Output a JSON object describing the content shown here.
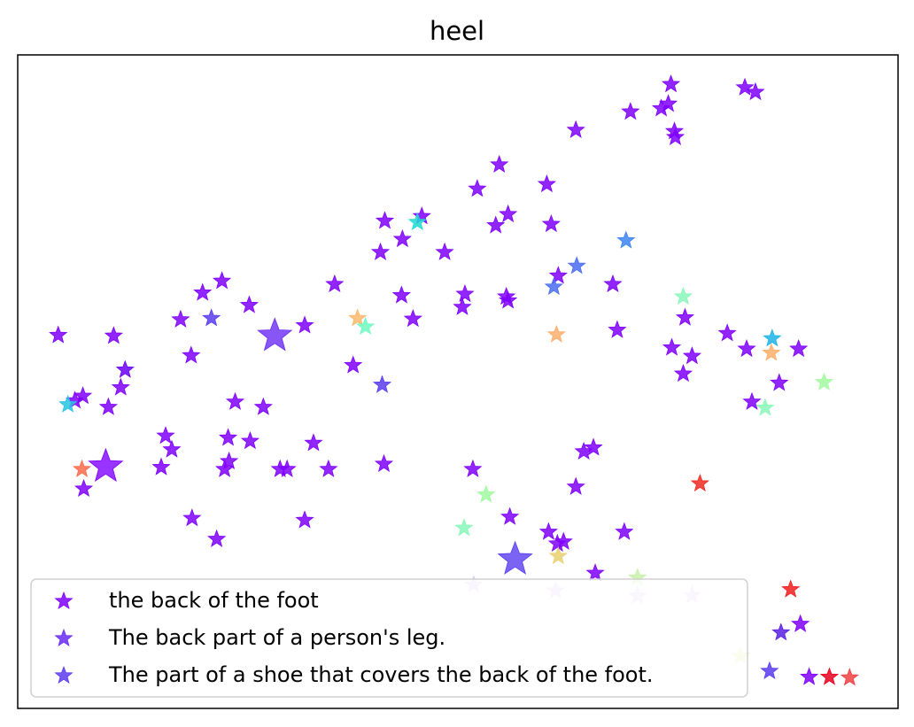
{
  "chart_data": {
    "type": "scatter",
    "title": "heel",
    "xlabel": "",
    "ylabel": "",
    "xlim": [
      0,
      100
    ],
    "ylim": [
      0,
      100
    ],
    "grid": false,
    "axes_ticks": false,
    "legend_placement": "lower-left",
    "marker": "star",
    "legend": [
      {
        "label": "the back of the foot",
        "color": "#7f00ff"
      },
      {
        "label": "The back part of a person's leg.",
        "color": "#6a2cf5"
      },
      {
        "label": "The part of a shoe that covers the back of the foot.",
        "color": "#5a3cf0"
      }
    ],
    "highlights": [
      {
        "x": 29.2,
        "y": 57.0,
        "color": "#6a2cf5"
      },
      {
        "x": 10.0,
        "y": 37.0,
        "color": "#7f00ff"
      },
      {
        "x": 56.5,
        "y": 22.8,
        "color": "#5a3cf0"
      }
    ],
    "points": [
      {
        "x": 74.2,
        "y": 95.5,
        "color": "#7f00ff"
      },
      {
        "x": 82.6,
        "y": 95.0,
        "color": "#7f00ff"
      },
      {
        "x": 83.8,
        "y": 94.3,
        "color": "#7f00ff"
      },
      {
        "x": 69.6,
        "y": 91.3,
        "color": "#7f00ff"
      },
      {
        "x": 73.1,
        "y": 91.8,
        "color": "#7f00ff"
      },
      {
        "x": 73.9,
        "y": 92.5,
        "color": "#7f00ff"
      },
      {
        "x": 63.4,
        "y": 88.5,
        "color": "#7f00ff"
      },
      {
        "x": 74.6,
        "y": 88.3,
        "color": "#7f00ff"
      },
      {
        "x": 74.7,
        "y": 87.4,
        "color": "#7f00ff"
      },
      {
        "x": 54.7,
        "y": 83.2,
        "color": "#7f00ff"
      },
      {
        "x": 52.2,
        "y": 79.5,
        "color": "#7f00ff"
      },
      {
        "x": 60.1,
        "y": 80.2,
        "color": "#7f00ff"
      },
      {
        "x": 55.7,
        "y": 75.6,
        "color": "#7f00ff"
      },
      {
        "x": 54.3,
        "y": 73.9,
        "color": "#7f00ff"
      },
      {
        "x": 60.6,
        "y": 74.1,
        "color": "#7f00ff"
      },
      {
        "x": 41.7,
        "y": 74.6,
        "color": "#7f00ff"
      },
      {
        "x": 45.9,
        "y": 75.3,
        "color": "#7f00ff"
      },
      {
        "x": 45.4,
        "y": 74.4,
        "color": "#1fdad2"
      },
      {
        "x": 43.7,
        "y": 71.8,
        "color": "#7f00ff"
      },
      {
        "x": 41.2,
        "y": 69.8,
        "color": "#7f00ff"
      },
      {
        "x": 48.5,
        "y": 69.8,
        "color": "#7f00ff"
      },
      {
        "x": 69.1,
        "y": 71.6,
        "color": "#3d85f0"
      },
      {
        "x": 63.5,
        "y": 67.7,
        "color": "#4b6cf0"
      },
      {
        "x": 61.4,
        "y": 66.2,
        "color": "#7f00ff"
      },
      {
        "x": 60.9,
        "y": 64.5,
        "color": "#4b6cf0"
      },
      {
        "x": 67.6,
        "y": 64.9,
        "color": "#7f00ff"
      },
      {
        "x": 75.6,
        "y": 63.0,
        "color": "#88f8b8"
      },
      {
        "x": 75.8,
        "y": 59.8,
        "color": "#7f00ff"
      },
      {
        "x": 23.2,
        "y": 65.4,
        "color": "#7f00ff"
      },
      {
        "x": 21.0,
        "y": 63.6,
        "color": "#7f00ff"
      },
      {
        "x": 26.3,
        "y": 61.7,
        "color": "#7f00ff"
      },
      {
        "x": 22.0,
        "y": 59.7,
        "color": "#5a3cf0"
      },
      {
        "x": 18.5,
        "y": 59.5,
        "color": "#7f00ff"
      },
      {
        "x": 36.0,
        "y": 64.9,
        "color": "#7f00ff"
      },
      {
        "x": 32.6,
        "y": 58.6,
        "color": "#7f00ff"
      },
      {
        "x": 43.6,
        "y": 63.2,
        "color": "#7f00ff"
      },
      {
        "x": 50.8,
        "y": 63.4,
        "color": "#7f00ff"
      },
      {
        "x": 55.5,
        "y": 63.0,
        "color": "#7f00ff"
      },
      {
        "x": 55.7,
        "y": 62.4,
        "color": "#7f00ff"
      },
      {
        "x": 50.5,
        "y": 61.4,
        "color": "#7f00ff"
      },
      {
        "x": 44.9,
        "y": 59.6,
        "color": "#7f00ff"
      },
      {
        "x": 38.6,
        "y": 59.7,
        "color": "#fdb86d"
      },
      {
        "x": 39.5,
        "y": 58.4,
        "color": "#6ef9c2"
      },
      {
        "x": 61.2,
        "y": 57.2,
        "color": "#fdae6b"
      },
      {
        "x": 68.1,
        "y": 57.9,
        "color": "#7f00ff"
      },
      {
        "x": 4.6,
        "y": 57.1,
        "color": "#7f00ff"
      },
      {
        "x": 10.9,
        "y": 57.0,
        "color": "#7f00ff"
      },
      {
        "x": 19.7,
        "y": 54.0,
        "color": "#7f00ff"
      },
      {
        "x": 38.1,
        "y": 52.5,
        "color": "#7f00ff"
      },
      {
        "x": 74.3,
        "y": 55.2,
        "color": "#7f00ff"
      },
      {
        "x": 76.6,
        "y": 53.9,
        "color": "#7f00ff"
      },
      {
        "x": 75.6,
        "y": 51.2,
        "color": "#7f00ff"
      },
      {
        "x": 80.6,
        "y": 57.4,
        "color": "#7f00ff"
      },
      {
        "x": 82.8,
        "y": 55.0,
        "color": "#7f00ff"
      },
      {
        "x": 85.7,
        "y": 56.6,
        "color": "#1cb4e5"
      },
      {
        "x": 85.6,
        "y": 54.4,
        "color": "#fdae6b"
      },
      {
        "x": 88.7,
        "y": 55.0,
        "color": "#7f00ff"
      },
      {
        "x": 86.5,
        "y": 49.8,
        "color": "#7f00ff"
      },
      {
        "x": 91.6,
        "y": 49.9,
        "color": "#a0faa0"
      },
      {
        "x": 83.4,
        "y": 46.9,
        "color": "#7f00ff"
      },
      {
        "x": 84.9,
        "y": 46.0,
        "color": "#88f8b8"
      },
      {
        "x": 12.2,
        "y": 51.8,
        "color": "#6a00f5"
      },
      {
        "x": 11.7,
        "y": 49.1,
        "color": "#7f00ff"
      },
      {
        "x": 7.4,
        "y": 47.8,
        "color": "#7f00ff"
      },
      {
        "x": 6.5,
        "y": 47.1,
        "color": "#7f00ff"
      },
      {
        "x": 5.7,
        "y": 46.5,
        "color": "#27c4e0"
      },
      {
        "x": 10.3,
        "y": 46.1,
        "color": "#7f00ff"
      },
      {
        "x": 41.4,
        "y": 49.5,
        "color": "#5a3cf0"
      },
      {
        "x": 24.7,
        "y": 46.9,
        "color": "#7f00ff"
      },
      {
        "x": 27.9,
        "y": 46.1,
        "color": "#7f00ff"
      },
      {
        "x": 16.8,
        "y": 41.7,
        "color": "#7f00ff"
      },
      {
        "x": 17.5,
        "y": 39.6,
        "color": "#7f00ff"
      },
      {
        "x": 23.9,
        "y": 41.4,
        "color": "#7f00ff"
      },
      {
        "x": 26.4,
        "y": 40.9,
        "color": "#7f00ff"
      },
      {
        "x": 33.6,
        "y": 40.6,
        "color": "#7f00ff"
      },
      {
        "x": 24.0,
        "y": 37.8,
        "color": "#7f00ff"
      },
      {
        "x": 23.5,
        "y": 36.6,
        "color": "#7f00ff"
      },
      {
        "x": 16.3,
        "y": 36.9,
        "color": "#7f00ff"
      },
      {
        "x": 29.8,
        "y": 36.6,
        "color": "#7f00ff"
      },
      {
        "x": 30.6,
        "y": 36.6,
        "color": "#7f00ff"
      },
      {
        "x": 35.3,
        "y": 36.6,
        "color": "#7f00ff"
      },
      {
        "x": 41.6,
        "y": 37.4,
        "color": "#7f00ff"
      },
      {
        "x": 7.3,
        "y": 36.6,
        "color": "#fb6a4a"
      },
      {
        "x": 7.5,
        "y": 33.6,
        "color": "#7f00ff"
      },
      {
        "x": 51.7,
        "y": 36.6,
        "color": "#7f00ff"
      },
      {
        "x": 64.3,
        "y": 39.3,
        "color": "#7f00ff"
      },
      {
        "x": 65.4,
        "y": 39.9,
        "color": "#7f00ff"
      },
      {
        "x": 63.4,
        "y": 33.9,
        "color": "#7f00ff"
      },
      {
        "x": 77.5,
        "y": 34.4,
        "color": "#ef2a1f"
      },
      {
        "x": 53.2,
        "y": 32.7,
        "color": "#a0faa0"
      },
      {
        "x": 19.8,
        "y": 29.1,
        "color": "#7f00ff"
      },
      {
        "x": 32.6,
        "y": 28.8,
        "color": "#7f00ff"
      },
      {
        "x": 55.9,
        "y": 29.3,
        "color": "#7f00ff"
      },
      {
        "x": 50.7,
        "y": 27.6,
        "color": "#88f8b8"
      },
      {
        "x": 22.6,
        "y": 25.9,
        "color": "#7f00ff"
      },
      {
        "x": 60.3,
        "y": 27.0,
        "color": "#7f00ff"
      },
      {
        "x": 68.9,
        "y": 27.0,
        "color": "#7f00ff"
      },
      {
        "x": 61.3,
        "y": 25.2,
        "color": "#7f00ff"
      },
      {
        "x": 62.0,
        "y": 25.5,
        "color": "#7f00ff"
      },
      {
        "x": 61.4,
        "y": 23.3,
        "color": "#e8d070"
      },
      {
        "x": 65.6,
        "y": 20.7,
        "color": "#7f00ff"
      },
      {
        "x": 70.4,
        "y": 20.0,
        "color": "#c8f0a8"
      },
      {
        "x": 51.8,
        "y": 18.9,
        "color": "#e0c8f8"
      },
      {
        "x": 61.1,
        "y": 18.0,
        "color": "#e0c8f8"
      },
      {
        "x": 70.4,
        "y": 17.2,
        "color": "#e0c8f8"
      },
      {
        "x": 76.6,
        "y": 17.3,
        "color": "#e0c8f8"
      },
      {
        "x": 87.8,
        "y": 18.2,
        "color": "#ef1f1f"
      },
      {
        "x": 88.9,
        "y": 12.9,
        "color": "#7f00ff"
      },
      {
        "x": 86.7,
        "y": 11.6,
        "color": "#5a1fe0"
      },
      {
        "x": 82.1,
        "y": 8.0,
        "color": "#e0eca8"
      },
      {
        "x": 85.4,
        "y": 5.7,
        "color": "#5a3cf0"
      },
      {
        "x": 89.9,
        "y": 4.8,
        "color": "#7f00ff"
      },
      {
        "x": 92.2,
        "y": 4.8,
        "color": "#e8001f"
      },
      {
        "x": 94.5,
        "y": 4.7,
        "color": "#ef3f3f"
      }
    ]
  }
}
